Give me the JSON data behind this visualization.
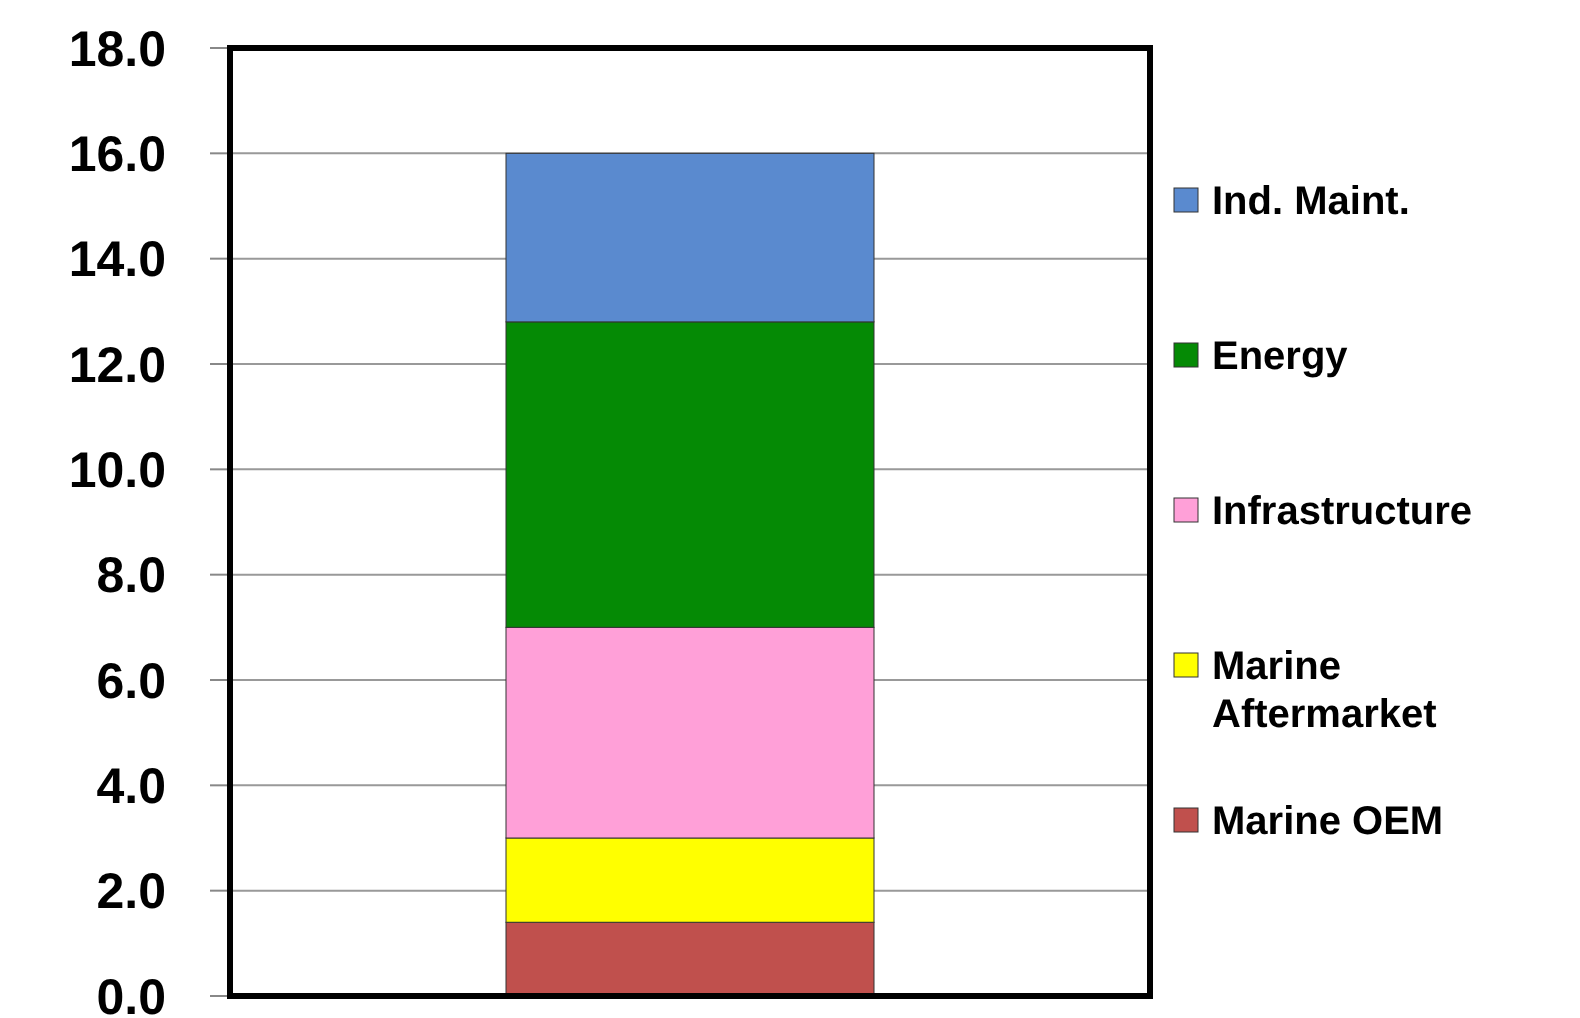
{
  "chart_data": {
    "type": "bar",
    "stacked": true,
    "categories": [
      null
    ],
    "series": [
      {
        "name": "Marine OEM",
        "color": "#c0504d",
        "values": [
          1.4
        ]
      },
      {
        "name": "Marine Aftermarket",
        "color": "#ffff00",
        "values": [
          1.6
        ]
      },
      {
        "name": "Infrastructure",
        "color": "#ffa0d8",
        "values": [
          4.0
        ]
      },
      {
        "name": "Energy",
        "color": "#058a05",
        "values": [
          5.8
        ]
      },
      {
        "name": "Ind. Maint.",
        "color": "#5a8acf",
        "values": [
          3.2
        ]
      }
    ],
    "ylim": [
      0,
      18
    ],
    "yticks": [
      {
        "value": 0,
        "label": "0.0"
      },
      {
        "value": 2,
        "label": "2.0"
      },
      {
        "value": 4,
        "label": "4.0"
      },
      {
        "value": 6,
        "label": "6.0"
      },
      {
        "value": 8,
        "label": "8.0"
      },
      {
        "value": 10,
        "label": "10.0"
      },
      {
        "value": 12,
        "label": "12.0"
      },
      {
        "value": 14,
        "label": "14.0"
      },
      {
        "value": 16,
        "label": "16.0"
      },
      {
        "value": 18,
        "label": "18.0"
      }
    ],
    "grid": "y",
    "legend": "right"
  }
}
